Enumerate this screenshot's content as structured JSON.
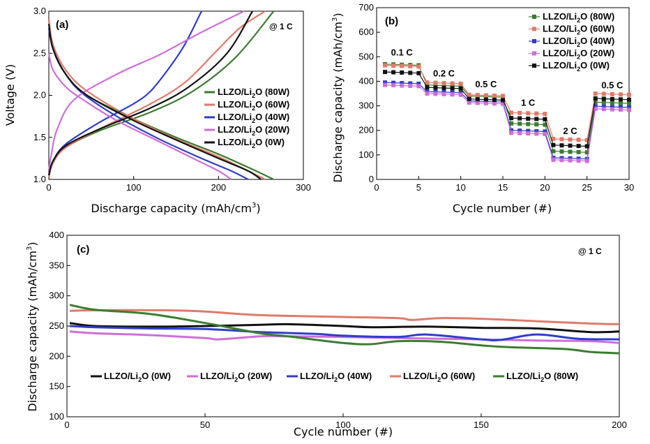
{
  "chart_data": [
    {
      "panel": "(a)",
      "type": "line",
      "annotation": "@ 1 C",
      "xlabel": "Discharge capacity (mAh/cm3)",
      "ylabel": "Voltage (V)",
      "xlim": [
        0,
        300
      ],
      "ylim": [
        1.0,
        3.0
      ],
      "xticks": [
        "0",
        "100",
        "200",
        "300"
      ],
      "yticks": [
        "1.0",
        "1.5",
        "2.0",
        "2.5",
        "3.0"
      ],
      "series": [
        {
          "name": "LLZO/Li2O (80W)",
          "color": "#3a7d2e",
          "discharge": [
            [
              0,
              2.9
            ],
            [
              5,
              2.55
            ],
            [
              20,
              2.25
            ],
            [
              45,
              2.0
            ],
            [
              100,
              1.72
            ],
            [
              150,
              1.5
            ],
            [
              200,
              1.3
            ],
            [
              240,
              1.12
            ],
            [
              265,
              1.0
            ]
          ],
          "charge": [
            [
              0,
              1.03
            ],
            [
              5,
              1.2
            ],
            [
              20,
              1.38
            ],
            [
              60,
              1.58
            ],
            [
              120,
              1.8
            ],
            [
              170,
              2.05
            ],
            [
              220,
              2.45
            ],
            [
              265,
              3.0
            ]
          ]
        },
        {
          "name": "LLZO/Li2O (60W)",
          "color": "#e07a6a",
          "discharge": [
            [
              0,
              2.9
            ],
            [
              5,
              2.6
            ],
            [
              20,
              2.3
            ],
            [
              45,
              2.05
            ],
            [
              100,
              1.72
            ],
            [
              150,
              1.48
            ],
            [
              200,
              1.27
            ],
            [
              235,
              1.1
            ],
            [
              255,
              1.0
            ]
          ],
          "charge": [
            [
              0,
              1.02
            ],
            [
              5,
              1.2
            ],
            [
              20,
              1.38
            ],
            [
              60,
              1.6
            ],
            [
              120,
              1.9
            ],
            [
              160,
              2.15
            ],
            [
              195,
              2.5
            ],
            [
              225,
              2.8
            ],
            [
              255,
              3.0
            ]
          ]
        },
        {
          "name": "LLZO/Li2O (40W)",
          "color": "#2e3dcc",
          "discharge": [
            [
              0,
              2.8
            ],
            [
              5,
              2.55
            ],
            [
              20,
              2.25
            ],
            [
              40,
              2.02
            ],
            [
              80,
              1.75
            ],
            [
              130,
              1.48
            ],
            [
              180,
              1.25
            ],
            [
              215,
              1.1
            ],
            [
              235,
              1.0
            ]
          ],
          "charge": [
            [
              0,
              1.05
            ],
            [
              5,
              1.22
            ],
            [
              20,
              1.42
            ],
            [
              60,
              1.68
            ],
            [
              100,
              1.9
            ],
            [
              120,
              2.05
            ],
            [
              140,
              2.3
            ],
            [
              160,
              2.6
            ],
            [
              180,
              3.0
            ]
          ]
        },
        {
          "name": "LLZO/Li2O (20W)",
          "color": "#cc6fd8",
          "discharge": [
            [
              0,
              2.5
            ],
            [
              5,
              2.3
            ],
            [
              20,
              2.1
            ],
            [
              40,
              1.95
            ],
            [
              80,
              1.7
            ],
            [
              130,
              1.45
            ],
            [
              170,
              1.25
            ],
            [
              200,
              1.1
            ],
            [
              215,
              1.0
            ]
          ],
          "charge": [
            [
              0,
              1.1
            ],
            [
              3,
              1.3
            ],
            [
              10,
              1.6
            ],
            [
              30,
              1.95
            ],
            [
              80,
              2.25
            ],
            [
              130,
              2.48
            ],
            [
              180,
              2.75
            ],
            [
              230,
              3.0
            ]
          ]
        },
        {
          "name": "LLZO/Li2O (0W)",
          "color": "#111111",
          "discharge": [
            [
              0,
              2.85
            ],
            [
              5,
              2.55
            ],
            [
              20,
              2.25
            ],
            [
              45,
              2.0
            ],
            [
              100,
              1.7
            ],
            [
              150,
              1.47
            ],
            [
              200,
              1.25
            ],
            [
              235,
              1.1
            ],
            [
              250,
              1.0
            ]
          ],
          "charge": [
            [
              0,
              1.05
            ],
            [
              5,
              1.22
            ],
            [
              20,
              1.4
            ],
            [
              60,
              1.6
            ],
            [
              120,
              1.85
            ],
            [
              165,
              2.1
            ],
            [
              210,
              2.5
            ],
            [
              240,
              3.0
            ]
          ]
        }
      ],
      "legend": [
        "LLZO/Li2O (80W)",
        "LLZO/Li2O (60W)",
        "LLZO/Li2O (40W)",
        "LLZO/Li2O (20W)",
        "LLZO/Li2O (0W)"
      ]
    },
    {
      "panel": "(b)",
      "type": "line",
      "xlabel": "Cycle number (#)",
      "ylabel": "Discharge capacity (mAh/cm3)",
      "xlim": [
        0,
        30
      ],
      "ylim": [
        0,
        700
      ],
      "xticks": [
        "0",
        "5",
        "10",
        "15",
        "20",
        "25",
        "30"
      ],
      "yticks": [
        "0",
        "100",
        "200",
        "300",
        "400",
        "500",
        "600",
        "700"
      ],
      "rate_labels": [
        "0.1 C",
        "0.2 C",
        "0.5 C",
        "1 C",
        "2 C",
        "0.5 C"
      ],
      "segments": [
        [
          1,
          5
        ],
        [
          6,
          10
        ],
        [
          11,
          15
        ],
        [
          16,
          20
        ],
        [
          21,
          25
        ],
        [
          26,
          30
        ]
      ],
      "series": [
        {
          "name": "LLZO/Li2O (80W)",
          "color": "#3a7d2e",
          "levels": [
            470,
            385,
            340,
            228,
            115,
            315
          ]
        },
        {
          "name": "LLZO/Li2O (60W)",
          "color": "#e07a6a",
          "levels": [
            465,
            395,
            345,
            272,
            165,
            350
          ]
        },
        {
          "name": "LLZO/Li2O (40W)",
          "color": "#2e3dcc",
          "levels": [
            395,
            358,
            320,
            200,
            88,
            298
          ]
        },
        {
          "name": "LLZO/Li2O (20W)",
          "color": "#cc6fd8",
          "levels": [
            385,
            350,
            313,
            190,
            80,
            288
          ]
        },
        {
          "name": "LLZO/Li2O (0W)",
          "color": "#111111",
          "levels": [
            438,
            375,
            328,
            250,
            140,
            330
          ]
        }
      ],
      "legend": [
        "LLZO/Li2O (80W)",
        "LLZO/Li2O (60W)",
        "LLZO/Li2O (40W)",
        "LLZO/Li2O (20W)",
        "LLZO/Li2O (0W)"
      ]
    },
    {
      "panel": "(c)",
      "type": "line",
      "annotation": "@ 1 C",
      "xlabel": "Cycle number (#)",
      "ylabel": "Discharge capacity (mAh/cm3)",
      "xlim": [
        0,
        200
      ],
      "ylim": [
        100,
        400
      ],
      "xticks": [
        "0",
        "50",
        "100",
        "150",
        "200"
      ],
      "yticks": [
        "100",
        "150",
        "200",
        "250",
        "300",
        "350",
        "400"
      ],
      "series": [
        {
          "name": "LLZO/Li2O (0W)",
          "color": "#111111",
          "points": [
            [
              1,
              255
            ],
            [
              10,
              250
            ],
            [
              30,
              249
            ],
            [
              50,
              250
            ],
            [
              70,
              252
            ],
            [
              80,
              253
            ],
            [
              100,
              250
            ],
            [
              110,
              248
            ],
            [
              130,
              249
            ],
            [
              150,
              247
            ],
            [
              170,
              246
            ],
            [
              190,
              240
            ],
            [
              200,
              241
            ]
          ]
        },
        {
          "name": "LLZO/Li2O (20W)",
          "color": "#cc6fd8",
          "points": [
            [
              1,
              241
            ],
            [
              10,
              238
            ],
            [
              30,
              235
            ],
            [
              50,
              230
            ],
            [
              55,
              228
            ],
            [
              70,
              233
            ],
            [
              80,
              233
            ],
            [
              100,
              232
            ],
            [
              120,
              230
            ],
            [
              150,
              228
            ],
            [
              170,
              226
            ],
            [
              190,
              225
            ],
            [
              200,
              222
            ]
          ]
        },
        {
          "name": "LLZO/Li2O (40W)",
          "color": "#2e3dcc",
          "points": [
            [
              1,
              250
            ],
            [
              10,
              248
            ],
            [
              30,
              246
            ],
            [
              50,
              245
            ],
            [
              70,
              240
            ],
            [
              90,
              237
            ],
            [
              100,
              234
            ],
            [
              120,
              232
            ],
            [
              130,
              236
            ],
            [
              150,
              228
            ],
            [
              157,
              227
            ],
            [
              170,
              236
            ],
            [
              185,
              229
            ],
            [
              200,
              228
            ]
          ]
        },
        {
          "name": "LLZO/Li2O (60W)",
          "color": "#e07a6a",
          "points": [
            [
              1,
              275
            ],
            [
              10,
              276
            ],
            [
              35,
              276
            ],
            [
              50,
              274
            ],
            [
              70,
              268
            ],
            [
              100,
              265
            ],
            [
              120,
              263
            ],
            [
              125,
              260
            ],
            [
              135,
              263
            ],
            [
              150,
              262
            ],
            [
              170,
              258
            ],
            [
              190,
              254
            ],
            [
              200,
              253
            ]
          ]
        },
        {
          "name": "LLZO/Li2O (80W)",
          "color": "#3a7d2e",
          "points": [
            [
              1,
              285
            ],
            [
              10,
              277
            ],
            [
              30,
              270
            ],
            [
              50,
              255
            ],
            [
              70,
              238
            ],
            [
              80,
              233
            ],
            [
              100,
              222
            ],
            [
              110,
              220
            ],
            [
              120,
              225
            ],
            [
              135,
              224
            ],
            [
              150,
              218
            ],
            [
              160,
              215
            ],
            [
              180,
              212
            ],
            [
              190,
              207
            ],
            [
              200,
              205
            ]
          ]
        }
      ],
      "legend": [
        "LLZO/Li2O (0W)",
        "LLZO/Li2O (20W)",
        "LLZO/Li2O (40W)",
        "LLZO/Li2O (60W)",
        "LLZO/Li2O (80W)"
      ]
    }
  ]
}
